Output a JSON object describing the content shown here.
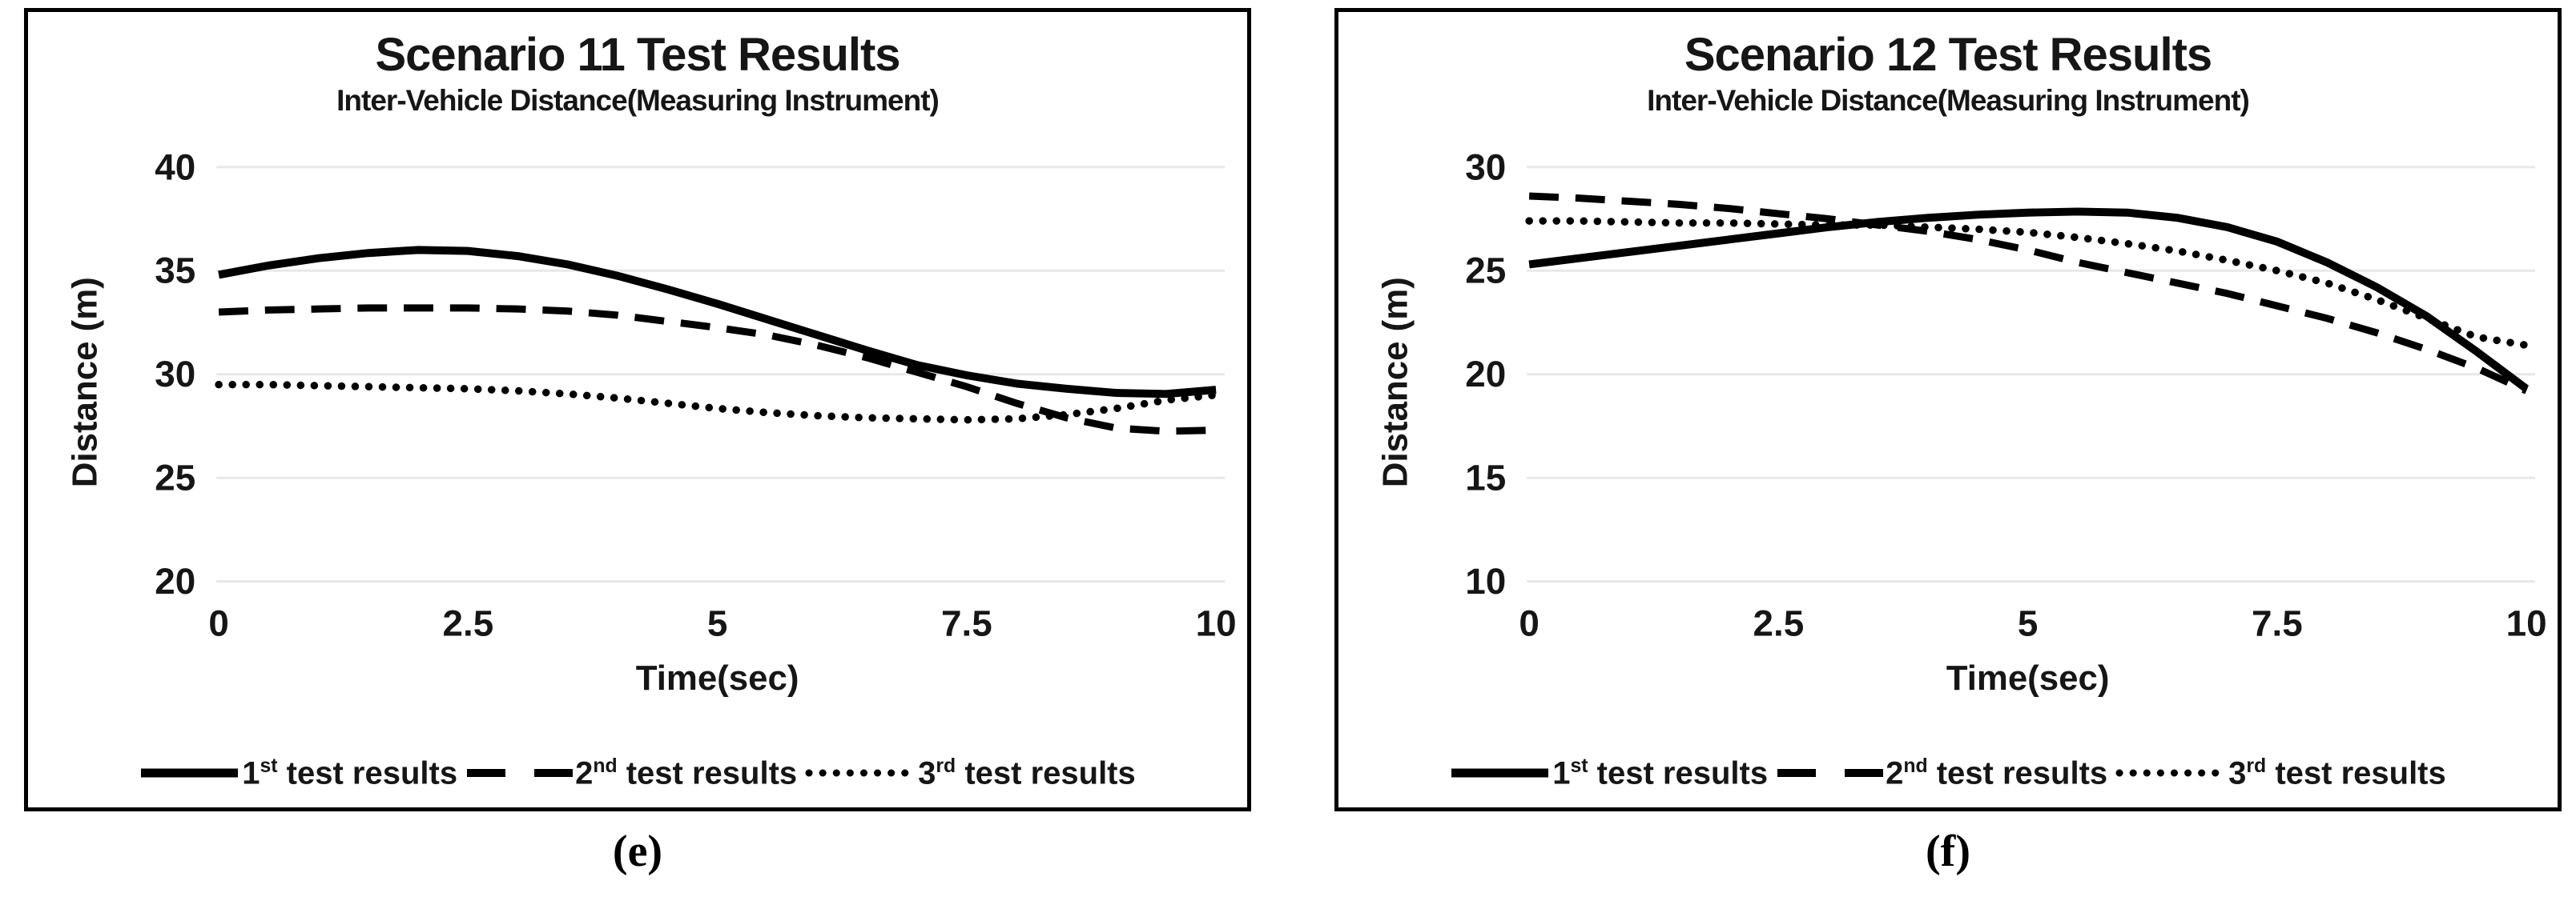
{
  "chart_data": [
    {
      "id": "e",
      "type": "line",
      "title": "Scenario 11 Test Results",
      "subtitle": "Inter-Vehicle Distance(Measuring Instrument)",
      "xlabel": "Time(sec)",
      "ylabel": "Distance (m)",
      "caption": "(e)",
      "xlim": [
        0,
        10
      ],
      "ylim": [
        20,
        40
      ],
      "x_ticks": [
        "0",
        "2.5",
        "5",
        "7.5",
        "10"
      ],
      "y_ticks": [
        "40",
        "35",
        "30",
        "25",
        "20"
      ],
      "grid": true,
      "legend_position": "bottom-inside",
      "line_color": "#000000",
      "grid_color": "#e8e8e8",
      "x": [
        0,
        0.5,
        1,
        1.5,
        2,
        2.5,
        3,
        3.5,
        4,
        4.5,
        5,
        5.5,
        6,
        6.5,
        7,
        7.5,
        8,
        8.5,
        9,
        9.5,
        10
      ],
      "series": [
        {
          "style": "solid",
          "legend_num": "1",
          "legend_sup": "st",
          "legend_rest": " test results",
          "values": [
            34.8,
            35.25,
            35.6,
            35.85,
            36.0,
            35.95,
            35.7,
            35.3,
            34.75,
            34.1,
            33.4,
            32.65,
            31.9,
            31.15,
            30.45,
            29.95,
            29.55,
            29.3,
            29.1,
            29.05,
            29.25
          ]
        },
        {
          "style": "dashed",
          "legend_num": "2",
          "legend_sup": "nd",
          "legend_rest": " test results",
          "values": [
            33.0,
            33.1,
            33.15,
            33.2,
            33.2,
            33.2,
            33.15,
            33.05,
            32.85,
            32.55,
            32.25,
            31.9,
            31.4,
            30.8,
            30.1,
            29.4,
            28.6,
            27.9,
            27.4,
            27.25,
            27.3
          ]
        },
        {
          "style": "dotted",
          "legend_num": "3",
          "legend_sup": "rd",
          "legend_rest": " test results",
          "values": [
            29.5,
            29.5,
            29.45,
            29.4,
            29.35,
            29.3,
            29.2,
            29.05,
            28.85,
            28.6,
            28.35,
            28.15,
            28.0,
            27.9,
            27.85,
            27.8,
            27.85,
            28.05,
            28.35,
            28.75,
            29.0
          ]
        }
      ]
    },
    {
      "id": "f",
      "type": "line",
      "title": "Scenario 12 Test Results",
      "subtitle": "Inter-Vehicle Distance(Measuring Instrument)",
      "xlabel": "Time(sec)",
      "ylabel": "Distance (m)",
      "caption": "(f)",
      "xlim": [
        0,
        10
      ],
      "ylim": [
        10,
        30
      ],
      "x_ticks": [
        "0",
        "2.5",
        "5",
        "7.5",
        "10"
      ],
      "y_ticks": [
        "30",
        "25",
        "20",
        "15",
        "10"
      ],
      "grid": true,
      "legend_position": "bottom-inside",
      "line_color": "#000000",
      "grid_color": "#e8e8e8",
      "x": [
        0,
        0.5,
        1,
        1.5,
        2,
        2.5,
        3,
        3.5,
        4,
        4.5,
        5,
        5.5,
        6,
        6.5,
        7,
        7.5,
        8,
        8.5,
        9,
        9.5,
        10
      ],
      "series": [
        {
          "style": "solid",
          "legend_num": "1",
          "legend_sup": "st",
          "legend_rest": " test results",
          "values": [
            25.3,
            25.6,
            25.9,
            26.2,
            26.5,
            26.8,
            27.1,
            27.35,
            27.55,
            27.7,
            27.8,
            27.85,
            27.8,
            27.55,
            27.1,
            26.4,
            25.4,
            24.2,
            22.8,
            21.1,
            19.3
          ]
        },
        {
          "style": "dashed",
          "legend_num": "2",
          "legend_sup": "nd",
          "legend_rest": " test results",
          "values": [
            28.6,
            28.5,
            28.35,
            28.2,
            28.0,
            27.75,
            27.5,
            27.2,
            26.9,
            26.5,
            26.0,
            25.4,
            24.9,
            24.4,
            23.9,
            23.3,
            22.7,
            22.0,
            21.2,
            20.3,
            19.2
          ]
        },
        {
          "style": "dotted",
          "legend_num": "3",
          "legend_sup": "rd",
          "legend_rest": " test results",
          "values": [
            27.4,
            27.4,
            27.35,
            27.3,
            27.3,
            27.25,
            27.2,
            27.2,
            27.1,
            27.0,
            26.85,
            26.6,
            26.3,
            25.95,
            25.5,
            25.0,
            24.4,
            23.6,
            22.7,
            21.8,
            21.4
          ]
        }
      ]
    }
  ]
}
